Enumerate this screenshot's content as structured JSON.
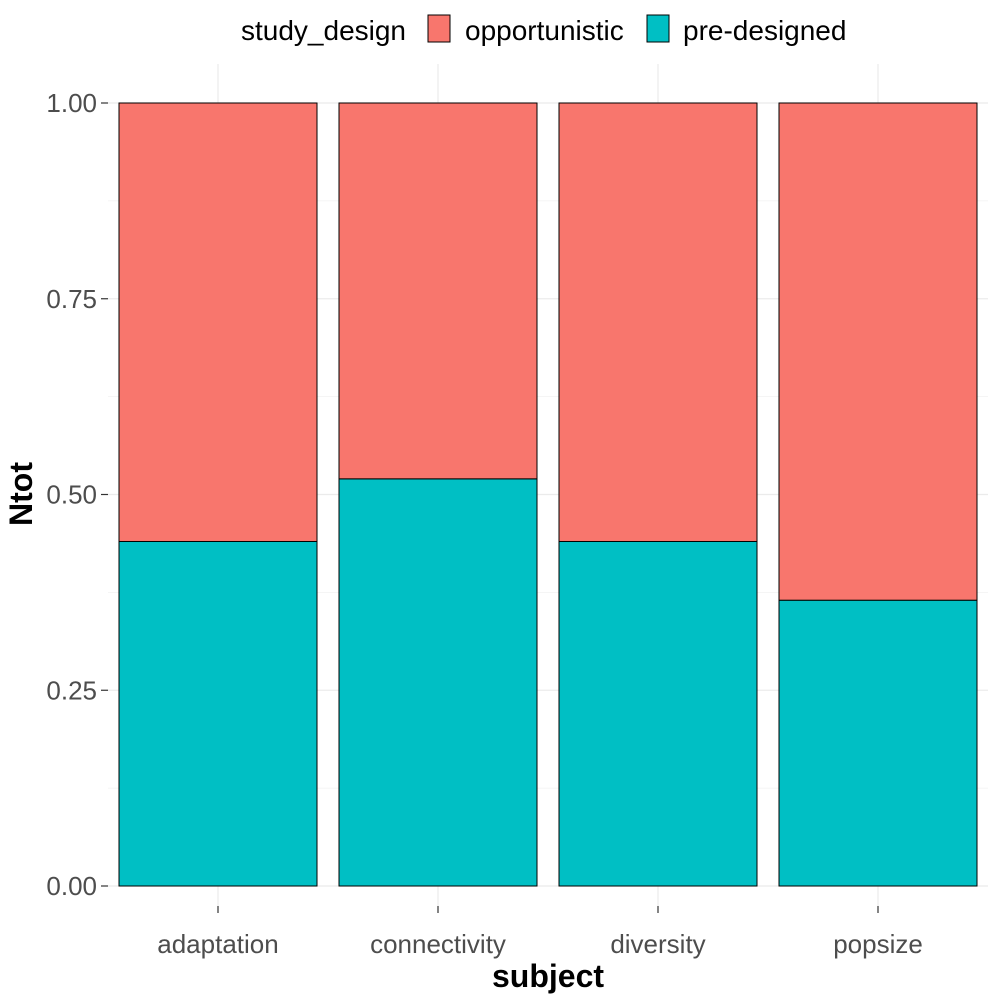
{
  "chart_data": {
    "type": "bar",
    "stacked": true,
    "xlabel": "subject",
    "ylabel": "Ntot",
    "ylim": [
      0,
      1
    ],
    "yticks": [
      "0.00",
      "0.25",
      "0.50",
      "0.75",
      "1.00"
    ],
    "grid": true,
    "legend": {
      "title": "study_design",
      "position": "top"
    },
    "categories": [
      "adaptation",
      "connectivity",
      "diversity",
      "popsize"
    ],
    "series": [
      {
        "name": "opportunistic",
        "color": "#F8766D",
        "values": [
          0.56,
          0.48,
          0.56,
          0.635
        ]
      },
      {
        "name": "pre-designed",
        "color": "#00BFC4",
        "values": [
          0.44,
          0.52,
          0.44,
          0.365
        ]
      }
    ]
  }
}
